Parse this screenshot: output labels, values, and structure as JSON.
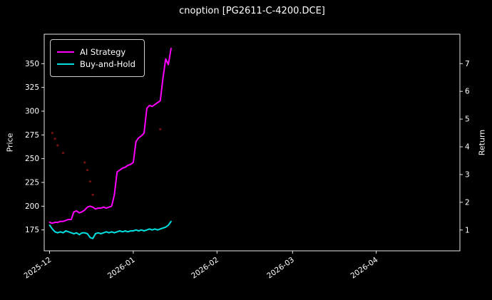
{
  "chart_data": {
    "type": "line",
    "title": "cnoption [PG2611-C-4200.DCE]",
    "colors": {
      "background": "#000000",
      "text": "#ffffff",
      "spine": "#ffffff",
      "ai_strategy": "#ff00ff",
      "buy_and_hold": "#00e0e0",
      "signal_dots": "#8b1515"
    },
    "x_axis": {
      "unit": "days since 2025-12-01",
      "lim_days": [
        -2,
        152
      ],
      "tick_days": [
        0,
        31,
        62,
        90,
        121
      ],
      "tick_labels": [
        "2025-12",
        "2026-01",
        "2026-02",
        "2026-03",
        "2026-04"
      ],
      "tick_rotation_deg": -35
    },
    "y_left": {
      "label": "Price",
      "ticks": [
        175,
        200,
        225,
        250,
        275,
        300,
        325,
        350
      ],
      "lim": [
        153,
        381
      ]
    },
    "y_right": {
      "label": "Return",
      "ticks": [
        1,
        2,
        3,
        4,
        5,
        6,
        7
      ],
      "lim": [
        0.25,
        8.06
      ]
    },
    "legend": {
      "position": "upper-left",
      "entries": [
        {
          "label": "AI Strategy",
          "color": "#ff00ff"
        },
        {
          "label": "Buy-and-Hold",
          "color": "#00e0e0"
        }
      ]
    },
    "series": [
      {
        "name": "AI Strategy",
        "color": "#ff00ff",
        "width": 2,
        "axis": "left",
        "days": [
          0,
          1,
          2,
          3,
          4,
          5,
          6,
          7,
          8,
          9,
          10,
          11,
          12,
          13,
          14,
          15,
          16,
          17,
          18,
          19,
          20,
          21,
          22,
          23,
          24,
          25,
          26,
          27,
          28,
          29,
          30,
          31,
          32,
          33,
          34,
          35,
          36,
          37,
          38,
          39,
          40,
          41,
          42,
          43,
          44,
          45
        ],
        "values": [
          183,
          182,
          183,
          183,
          184,
          184,
          185,
          186,
          186,
          194,
          195,
          193,
          194,
          196,
          199,
          200,
          199,
          197,
          198,
          198,
          199,
          198,
          199,
          200,
          212,
          236,
          238,
          240,
          241,
          243,
          244,
          246,
          268,
          272,
          274,
          277,
          303,
          306,
          305,
          307,
          309,
          311,
          335,
          355,
          349,
          366
        ]
      },
      {
        "name": "Buy-and-Hold",
        "color": "#00e0e0",
        "width": 2,
        "axis": "left",
        "days": [
          0,
          1,
          2,
          3,
          4,
          5,
          6,
          7,
          8,
          9,
          10,
          11,
          12,
          13,
          14,
          15,
          16,
          17,
          18,
          19,
          20,
          21,
          22,
          23,
          24,
          25,
          26,
          27,
          28,
          29,
          30,
          31,
          32,
          33,
          34,
          35,
          36,
          37,
          38,
          39,
          40,
          41,
          42,
          43,
          44,
          45
        ],
        "values": [
          180,
          176,
          173,
          172,
          173,
          172,
          174,
          173,
          172,
          171,
          172,
          170,
          172,
          172,
          171,
          167,
          166,
          171,
          172,
          171,
          172,
          173,
          172,
          173,
          172,
          173,
          174,
          173,
          174,
          173,
          174,
          174,
          175,
          174,
          175,
          174,
          175,
          176,
          175,
          176,
          175,
          176,
          177,
          178,
          180,
          184
        ]
      }
    ],
    "scatter": [
      {
        "name": "signal-dots",
        "color": "#8b1515",
        "radius": 1.6,
        "points": [
          [
            1,
            277
          ],
          [
            2,
            271
          ],
          [
            3,
            264
          ],
          [
            5,
            256
          ],
          [
            13,
            246
          ],
          [
            14,
            238
          ],
          [
            15,
            226
          ],
          [
            16,
            212
          ],
          [
            41,
            281
          ]
        ]
      }
    ]
  }
}
